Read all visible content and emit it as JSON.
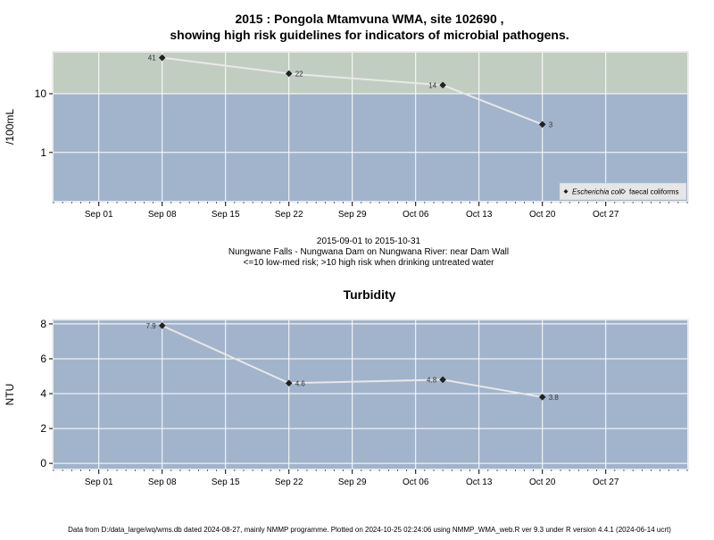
{
  "chart_data": [
    {
      "type": "line",
      "title_line1": "2015 : Pongola Mtamvuna WMA, site 102690 ,",
      "title_line2": "showing high risk guidelines for indicators of microbial pathogens.",
      "ylabel": "/100mL",
      "y_scale": "log",
      "ylim": [
        0.15,
        50
      ],
      "y_ticks": [
        1,
        10
      ],
      "y_tick_labels": [
        "1",
        "10"
      ],
      "high_risk_threshold": 10,
      "xlim": [
        "2015-08-27",
        "2015-11-05"
      ],
      "x_ticks": [
        "2015-09-01",
        "2015-09-08",
        "2015-09-15",
        "2015-09-22",
        "2015-09-29",
        "2015-10-06",
        "2015-10-13",
        "2015-10-20",
        "2015-10-27"
      ],
      "x_tick_labels": [
        "Sep 01",
        "Sep 08",
        "Sep 15",
        "Sep 22",
        "Sep 29",
        "Oct 06",
        "Oct 13",
        "Oct 20",
        "Oct 27"
      ],
      "series": [
        {
          "name": "Escherichia coli",
          "x": [
            "2015-09-08",
            "2015-09-22",
            "2015-10-09",
            "2015-10-20"
          ],
          "values": [
            41,
            22,
            14,
            3
          ],
          "labels": [
            "41",
            "22",
            "14",
            "3"
          ]
        }
      ],
      "legend": [
        {
          "label": "Escherichia coli",
          "marker": "filled-diamond"
        },
        {
          "label": "faecal coliforms",
          "marker": "open-diamond"
        }
      ],
      "legend_position": "bottom-right",
      "grid": true,
      "colors": {
        "low_risk": "#a2b4cc",
        "high_risk": "#c2cdc2",
        "line": "#e8e8e8",
        "grid": "#ffffff"
      }
    },
    {
      "type": "line",
      "title": "Turbidity",
      "ylabel": "NTU",
      "ylim": [
        -0.3,
        8.2
      ],
      "y_ticks": [
        0,
        2,
        4,
        6,
        8
      ],
      "y_tick_labels": [
        "0",
        "2",
        "4",
        "6",
        "8"
      ],
      "xlim": [
        "2015-08-27",
        "2015-11-05"
      ],
      "x_ticks": [
        "2015-09-01",
        "2015-09-08",
        "2015-09-15",
        "2015-09-22",
        "2015-09-29",
        "2015-10-06",
        "2015-10-13",
        "2015-10-20",
        "2015-10-27"
      ],
      "x_tick_labels": [
        "Sep 01",
        "Sep 08",
        "Sep 15",
        "Sep 22",
        "Sep 29",
        "Oct 06",
        "Oct 13",
        "Oct 20",
        "Oct 27"
      ],
      "series": [
        {
          "x": [
            "2015-09-08",
            "2015-09-22",
            "2015-10-09",
            "2015-10-20"
          ],
          "values": [
            7.9,
            4.6,
            4.8,
            3.8
          ],
          "labels": [
            "7.9",
            "4.6",
            "4.8",
            "3.8"
          ]
        }
      ],
      "grid": true,
      "colors": {
        "background": "#a2b4cc",
        "line": "#e8e8e8",
        "grid": "#ffffff"
      }
    }
  ],
  "caption": {
    "date_range": "2015-09-01 to 2015-10-31",
    "site": "Nungwane Falls - Nungwana Dam on Nungwana River: near Dam Wall",
    "guideline": "<=10 low-med risk; >10 high risk when drinking untreated water"
  },
  "footer": "Data from D:/data_large/wq/wms.db dated 2024-08-27, mainly NMMP programme. Plotted on 2024-10-25 02:24:06 using NMMP_WMA_web.R ver 9.3 under R version 4.4.1 (2024-06-14 ucrt)"
}
